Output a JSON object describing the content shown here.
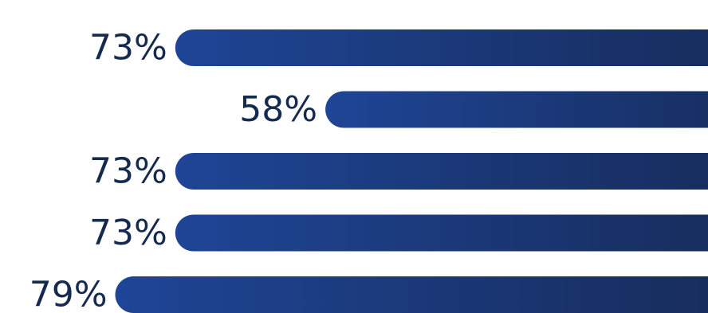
{
  "chart_data": {
    "type": "bar",
    "orientation": "horizontal",
    "values": [
      73,
      58,
      73,
      73,
      79
    ],
    "labels": [
      "73%",
      "58%",
      "73%",
      "73%",
      "79%"
    ],
    "unit": "%",
    "title": "",
    "xlabel": "",
    "ylabel": "",
    "xlim": [
      0,
      100
    ],
    "grid": false,
    "colors": {
      "bar_start": "#1f4596",
      "bar_end": "#14254a",
      "label": "#142a4e"
    }
  }
}
